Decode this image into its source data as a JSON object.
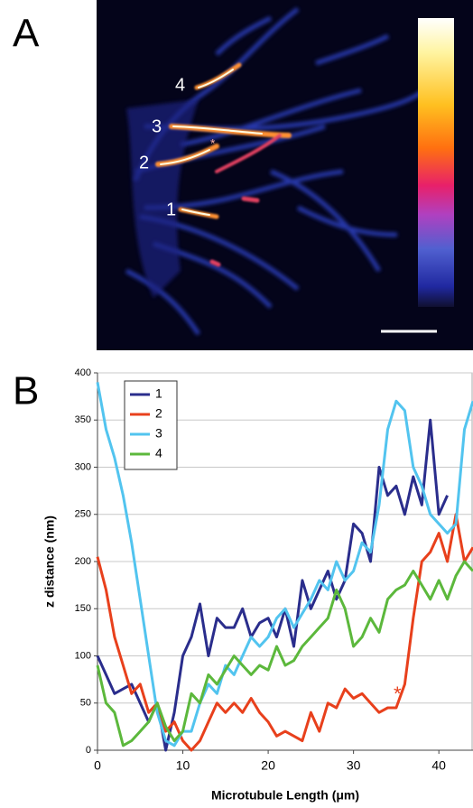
{
  "panel_a": {
    "label": "A",
    "markers": [
      "4",
      "3",
      "2",
      "1",
      "*"
    ]
  },
  "chart_data": {
    "type": "line",
    "panel_label": "B",
    "xlabel": "Microtubule Length (μm)",
    "ylabel": "z distance (nm)",
    "x": [
      0,
      1,
      2,
      3,
      4,
      5,
      6,
      7,
      8,
      9,
      10,
      11,
      12,
      13,
      14,
      15,
      16,
      17,
      18,
      19,
      20,
      21,
      22,
      23,
      24,
      25,
      26,
      27,
      28,
      29,
      30,
      31,
      32,
      33,
      34,
      35,
      36,
      37,
      38,
      39,
      40,
      41,
      42,
      43,
      44
    ],
    "series": [
      {
        "name": "1",
        "color": "#2a2d8c",
        "values": [
          100,
          80,
          60,
          65,
          70,
          50,
          30,
          50,
          0,
          40,
          100,
          120,
          155,
          100,
          140,
          130,
          130,
          150,
          120,
          135,
          140,
          120,
          150,
          110,
          180,
          150,
          170,
          190,
          160,
          180,
          240,
          230,
          200,
          300,
          270,
          280,
          250,
          290,
          260,
          350,
          250,
          270,
          null,
          null,
          null
        ]
      },
      {
        "name": "2",
        "color": "#e8401c",
        "values": [
          205,
          170,
          120,
          90,
          60,
          70,
          40,
          50,
          20,
          30,
          10,
          0,
          10,
          30,
          50,
          40,
          50,
          40,
          55,
          40,
          30,
          15,
          20,
          15,
          10,
          40,
          20,
          50,
          45,
          65,
          55,
          60,
          50,
          40,
          45,
          45,
          70,
          140,
          200,
          210,
          230,
          200,
          250,
          200,
          215
        ]
      },
      {
        "name": "3",
        "color": "#52c4ef",
        "values": [
          390,
          340,
          310,
          270,
          220,
          160,
          100,
          40,
          10,
          5,
          20,
          20,
          50,
          70,
          60,
          90,
          80,
          100,
          120,
          110,
          120,
          140,
          150,
          130,
          145,
          160,
          180,
          170,
          200,
          180,
          190,
          220,
          210,
          260,
          340,
          370,
          360,
          300,
          280,
          250,
          240,
          230,
          240,
          340,
          370
        ]
      },
      {
        "name": "4",
        "color": "#5cb83c",
        "values": [
          90,
          50,
          40,
          5,
          10,
          20,
          30,
          50,
          25,
          10,
          20,
          60,
          50,
          80,
          70,
          85,
          100,
          90,
          80,
          90,
          85,
          110,
          90,
          95,
          110,
          120,
          130,
          140,
          170,
          150,
          110,
          120,
          140,
          125,
          160,
          170,
          175,
          190,
          175,
          160,
          180,
          160,
          185,
          200,
          190
        ]
      }
    ],
    "xlim": [
      0,
      44
    ],
    "ylim": [
      0,
      400
    ],
    "xticks": [
      0,
      10,
      20,
      30,
      40
    ],
    "yticks": [
      0,
      50,
      100,
      150,
      200,
      250,
      300,
      350,
      400
    ],
    "grid": true,
    "legend": "upper left",
    "annotations": [
      "*"
    ]
  }
}
